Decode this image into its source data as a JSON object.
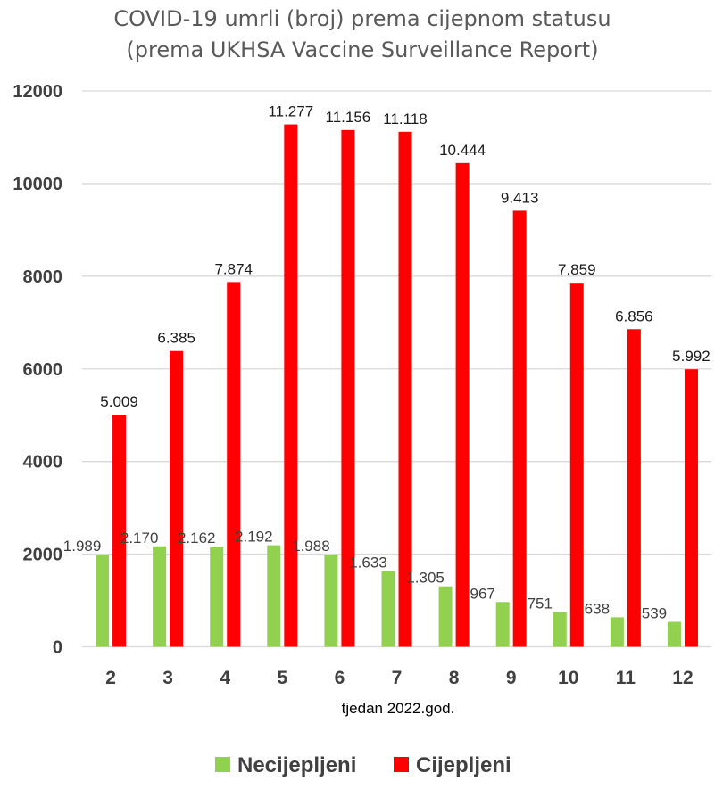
{
  "chart_data": {
    "type": "bar",
    "title": "COVID-19 umrli (broj) prema cijepnom statusu",
    "subtitle": "(prema UKHSA Vaccine Surveillance Report)",
    "xlabel": "tjedan 2022.god.",
    "ylabel": "",
    "ylim": [
      0,
      12000
    ],
    "yticks": [
      "0",
      "2000",
      "4000",
      "6000",
      "8000",
      "10000",
      "12000"
    ],
    "grid": true,
    "legend_position": "bottom",
    "categories": [
      "2",
      "3",
      "4",
      "5",
      "6",
      "7",
      "8",
      "9",
      "10",
      "11",
      "12"
    ],
    "series": [
      {
        "name": "Necijepljeni",
        "color": "#92d050",
        "values": [
          1989,
          2170,
          2162,
          2192,
          1988,
          1633,
          1305,
          967,
          751,
          638,
          539
        ],
        "labels": [
          "1.989",
          "2.170",
          "2.162",
          "2.192",
          "1.988",
          "1.633",
          "1.305",
          "967",
          "751",
          "638",
          "539"
        ]
      },
      {
        "name": "Cijepljeni",
        "color": "#ff0000",
        "values": [
          5009,
          6385,
          7874,
          11277,
          11156,
          11118,
          10444,
          9413,
          7859,
          6856,
          5992
        ],
        "labels": [
          "5.009",
          "6.385",
          "7.874",
          "11.277",
          "11.156",
          "11.118",
          "10.444",
          "9.413",
          "7.859",
          "6.856",
          "5.992"
        ]
      }
    ]
  }
}
